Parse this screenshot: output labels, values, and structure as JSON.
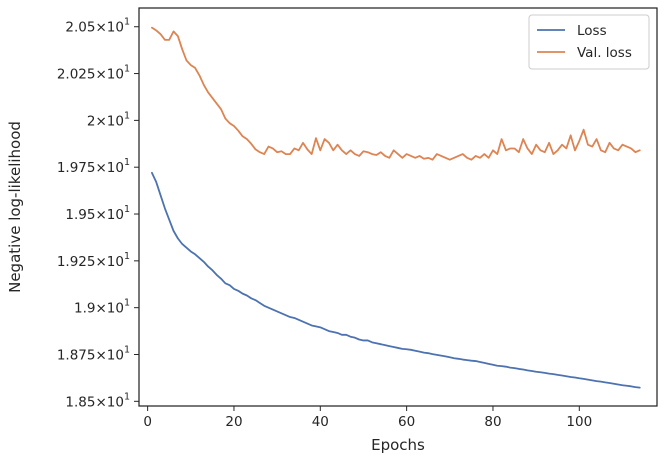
{
  "chart_data": {
    "type": "line",
    "xlabel": "Epochs",
    "ylabel": "Negative log-likelihood",
    "xlim": [
      -2,
      118
    ],
    "ylim": [
      18.475,
      20.6
    ],
    "x_ticks": [
      0,
      20,
      40,
      60,
      80,
      100
    ],
    "x_tick_labels": [
      "0",
      "20",
      "40",
      "60",
      "80",
      "100"
    ],
    "y_ticks": [
      18.5,
      18.75,
      19.0,
      19.25,
      19.5,
      19.75,
      20.0,
      20.25,
      20.5
    ],
    "y_tick_labels": [
      {
        "mant": "1.85",
        "exp": "1"
      },
      {
        "mant": "1.875",
        "exp": "1"
      },
      {
        "mant": "1.9",
        "exp": "1"
      },
      {
        "mant": "1.925",
        "exp": "1"
      },
      {
        "mant": "1.95",
        "exp": "1"
      },
      {
        "mant": "1.975",
        "exp": "1"
      },
      {
        "mant": "2",
        "exp": "1"
      },
      {
        "mant": "2.025",
        "exp": "1"
      },
      {
        "mant": "2.05",
        "exp": "1"
      }
    ],
    "grid": false,
    "legend_position": "top-right",
    "series": [
      {
        "name": "Loss",
        "color": "#4c72b0",
        "x": [
          1,
          2,
          3,
          4,
          5,
          6,
          7,
          8,
          9,
          10,
          11,
          12,
          13,
          14,
          15,
          16,
          17,
          18,
          19,
          20,
          21,
          22,
          23,
          24,
          25,
          26,
          27,
          28,
          29,
          30,
          31,
          32,
          33,
          34,
          35,
          36,
          37,
          38,
          39,
          40,
          41,
          42,
          43,
          44,
          45,
          46,
          47,
          48,
          49,
          50,
          51,
          52,
          53,
          54,
          55,
          56,
          57,
          58,
          59,
          60,
          61,
          62,
          63,
          64,
          65,
          66,
          67,
          68,
          69,
          70,
          71,
          72,
          73,
          74,
          75,
          76,
          77,
          78,
          79,
          80,
          81,
          82,
          83,
          84,
          85,
          86,
          87,
          88,
          89,
          90,
          91,
          92,
          93,
          94,
          95,
          96,
          97,
          98,
          99,
          100,
          101,
          102,
          103,
          104,
          105,
          106,
          107,
          108,
          109,
          110,
          111,
          112,
          113,
          114
        ],
        "values": [
          19.72,
          19.67,
          19.6,
          19.53,
          19.47,
          19.41,
          19.37,
          19.34,
          19.32,
          19.3,
          19.285,
          19.265,
          19.245,
          19.22,
          19.2,
          19.175,
          19.155,
          19.13,
          19.12,
          19.1,
          19.09,
          19.075,
          19.065,
          19.05,
          19.04,
          19.025,
          19.01,
          19.0,
          18.99,
          18.98,
          18.97,
          18.96,
          18.95,
          18.945,
          18.935,
          18.925,
          18.915,
          18.905,
          18.9,
          18.895,
          18.885,
          18.875,
          18.87,
          18.865,
          18.855,
          18.855,
          18.845,
          18.84,
          18.83,
          18.825,
          18.825,
          18.815,
          18.81,
          18.805,
          18.8,
          18.795,
          18.79,
          18.785,
          18.78,
          18.778,
          18.775,
          18.77,
          18.765,
          18.76,
          18.757,
          18.752,
          18.748,
          18.744,
          18.74,
          18.735,
          18.73,
          18.727,
          18.723,
          18.72,
          18.717,
          18.715,
          18.71,
          18.705,
          18.7,
          18.695,
          18.69,
          18.688,
          18.685,
          18.68,
          18.677,
          18.673,
          18.67,
          18.665,
          18.662,
          18.658,
          18.655,
          18.652,
          18.648,
          18.645,
          18.641,
          18.638,
          18.634,
          18.63,
          18.627,
          18.623,
          18.62,
          18.616,
          18.612,
          18.608,
          18.605,
          18.601,
          18.598,
          18.594,
          18.59,
          18.586,
          18.583,
          18.58,
          18.576,
          18.573
        ]
      },
      {
        "name": "Val. loss",
        "color": "#dd8452",
        "x": [
          1,
          2,
          3,
          4,
          5,
          6,
          7,
          8,
          9,
          10,
          11,
          12,
          13,
          14,
          15,
          16,
          17,
          18,
          19,
          20,
          21,
          22,
          23,
          24,
          25,
          26,
          27,
          28,
          29,
          30,
          31,
          32,
          33,
          34,
          35,
          36,
          37,
          38,
          39,
          40,
          41,
          42,
          43,
          44,
          45,
          46,
          47,
          48,
          49,
          50,
          51,
          52,
          53,
          54,
          55,
          56,
          57,
          58,
          59,
          60,
          61,
          62,
          63,
          64,
          65,
          66,
          67,
          68,
          69,
          70,
          71,
          72,
          73,
          74,
          75,
          76,
          77,
          78,
          79,
          80,
          81,
          82,
          83,
          84,
          85,
          86,
          87,
          88,
          89,
          90,
          91,
          92,
          93,
          94,
          95,
          96,
          97,
          98,
          99,
          100,
          101,
          102,
          103,
          104,
          105,
          106,
          107,
          108,
          109,
          110,
          111,
          112,
          113,
          114
        ],
        "values": [
          20.495,
          20.48,
          20.46,
          20.43,
          20.43,
          20.475,
          20.45,
          20.38,
          20.32,
          20.295,
          20.28,
          20.24,
          20.19,
          20.15,
          20.12,
          20.09,
          20.06,
          20.01,
          19.985,
          19.97,
          19.945,
          19.915,
          19.9,
          19.875,
          19.845,
          19.83,
          19.82,
          19.86,
          19.85,
          19.83,
          19.835,
          19.82,
          19.82,
          19.85,
          19.84,
          19.88,
          19.845,
          19.82,
          19.905,
          19.84,
          19.9,
          19.88,
          19.84,
          19.87,
          19.84,
          19.82,
          19.84,
          19.82,
          19.81,
          19.835,
          19.83,
          19.82,
          19.815,
          19.83,
          19.81,
          19.8,
          19.84,
          19.82,
          19.8,
          19.82,
          19.81,
          19.8,
          19.81,
          19.795,
          19.8,
          19.79,
          19.82,
          19.81,
          19.8,
          19.79,
          19.8,
          19.81,
          19.82,
          19.8,
          19.79,
          19.81,
          19.8,
          19.82,
          19.8,
          19.84,
          19.82,
          19.9,
          19.84,
          19.85,
          19.85,
          19.83,
          19.9,
          19.85,
          19.82,
          19.87,
          19.84,
          19.83,
          19.88,
          19.82,
          19.84,
          19.87,
          19.85,
          19.92,
          19.84,
          19.89,
          19.95,
          19.87,
          19.86,
          19.9,
          19.84,
          19.83,
          19.88,
          19.85,
          19.84,
          19.87,
          19.86,
          19.85,
          19.83,
          19.84
        ]
      }
    ]
  }
}
